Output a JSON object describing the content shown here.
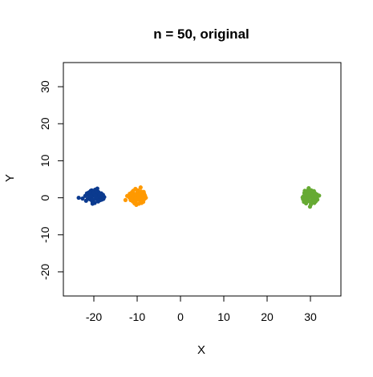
{
  "chart_data": {
    "type": "scatter",
    "title": "n = 50, original",
    "xlabel": "X",
    "ylabel": "Y",
    "xlim": [
      -25,
      35
    ],
    "ylim": [
      -25,
      35
    ],
    "xticks": [
      -20,
      -10,
      0,
      10,
      20,
      30
    ],
    "yticks": [
      -20,
      -10,
      0,
      10,
      20,
      30
    ],
    "grid": false,
    "legend": "none",
    "series": [
      {
        "color": "#0b3a8f",
        "points": [
          [
            -19.5,
            0.2
          ],
          [
            -20.3,
            1.1
          ],
          [
            -18.8,
            0.5
          ],
          [
            -20.9,
            -0.4
          ],
          [
            -19.2,
            1.8
          ],
          [
            -21.5,
            0.9
          ],
          [
            -18.5,
            -0.6
          ],
          [
            -20.0,
            -1.2
          ],
          [
            -22.6,
            -0.2
          ],
          [
            -19.7,
            2.2
          ],
          [
            -17.9,
            0.8
          ],
          [
            -20.6,
            0.1
          ],
          [
            -19.0,
            -1.0
          ],
          [
            -21.2,
            1.4
          ],
          [
            -18.3,
            1.2
          ],
          [
            -20.1,
            0.6
          ],
          [
            -19.4,
            -0.3
          ],
          [
            -21.8,
            -0.8
          ],
          [
            -18.9,
            1.5
          ],
          [
            -20.4,
            -0.9
          ],
          [
            -17.6,
            0.2
          ],
          [
            -19.9,
            1.0
          ],
          [
            -21.0,
            0.0
          ],
          [
            -18.6,
            -0.2
          ],
          [
            -20.7,
            1.9
          ],
          [
            -19.3,
            0.9
          ],
          [
            -22.0,
            0.5
          ],
          [
            -18.1,
            -0.1
          ],
          [
            -20.2,
            -0.5
          ],
          [
            -19.6,
            1.6
          ],
          [
            -21.4,
            -0.3
          ],
          [
            -18.7,
            0.0
          ],
          [
            -20.8,
            0.7
          ],
          [
            -19.1,
            -0.7
          ],
          [
            -20.5,
            2.0
          ],
          [
            -18.4,
            0.4
          ],
          [
            -19.8,
            -1.4
          ],
          [
            -21.6,
            1.2
          ],
          [
            -19.0,
            0.3
          ],
          [
            -20.0,
            1.3
          ],
          [
            -18.2,
            -0.5
          ],
          [
            -21.1,
            0.4
          ],
          [
            -19.5,
            -0.1
          ],
          [
            -20.3,
            -1.6
          ],
          [
            -18.6,
            1.0
          ],
          [
            -23.5,
            0.0
          ],
          [
            -19.2,
            2.5
          ],
          [
            -20.9,
            1.6
          ],
          [
            -17.8,
            -0.3
          ],
          [
            -19.7,
            0.5
          ]
        ]
      },
      {
        "color": "#ff9900",
        "points": [
          [
            -10.1,
            0.3
          ],
          [
            -9.5,
            1.2
          ],
          [
            -10.8,
            -0.5
          ],
          [
            -9.0,
            0.8
          ],
          [
            -11.2,
            1.5
          ],
          [
            -8.7,
            -0.2
          ],
          [
            -10.4,
            -1.3
          ],
          [
            -9.8,
            2.0
          ],
          [
            -11.8,
            0.1
          ],
          [
            -8.4,
            1.1
          ],
          [
            -10.6,
            0.7
          ],
          [
            -9.3,
            -0.8
          ],
          [
            -11.5,
            -0.6
          ],
          [
            -9.9,
            1.6
          ],
          [
            -8.9,
            0.4
          ],
          [
            -10.3,
            -0.1
          ],
          [
            -9.6,
            -1.6
          ],
          [
            -12.3,
            0.5
          ],
          [
            -8.2,
            0.6
          ],
          [
            -10.9,
            1.9
          ],
          [
            -9.1,
            -0.4
          ],
          [
            -10.0,
            0.9
          ],
          [
            -11.0,
            -1.0
          ],
          [
            -9.4,
            0.1
          ],
          [
            -8.6,
            -1.1
          ],
          [
            -10.7,
            0.2
          ],
          [
            -9.7,
            1.4
          ],
          [
            -11.4,
            0.8
          ],
          [
            -8.8,
            -0.7
          ],
          [
            -10.2,
            -1.9
          ],
          [
            -9.2,
            2.8
          ],
          [
            -12.7,
            -0.6
          ],
          [
            -8.0,
            0.0
          ],
          [
            -10.5,
            1.0
          ],
          [
            -9.6,
            -0.3
          ],
          [
            -11.1,
            0.0
          ],
          [
            -9.0,
            -1.4
          ],
          [
            -10.8,
            -0.9
          ],
          [
            -9.9,
            0.5
          ],
          [
            -8.5,
            1.6
          ],
          [
            -10.1,
            -0.6
          ],
          [
            -11.7,
            1.1
          ],
          [
            -9.4,
            0.9
          ],
          [
            -10.6,
            -1.5
          ],
          [
            -8.3,
            -0.3
          ],
          [
            -9.8,
            0.0
          ],
          [
            -11.3,
            -0.1
          ],
          [
            -9.1,
            1.7
          ],
          [
            -10.4,
            2.4
          ],
          [
            -8.9,
            -0.9
          ]
        ]
      },
      {
        "color": "#66aa33",
        "points": [
          [
            29.8,
            0.2
          ],
          [
            30.5,
            1.1
          ],
          [
            29.2,
            -0.6
          ],
          [
            31.0,
            0.7
          ],
          [
            28.6,
            1.3
          ],
          [
            30.2,
            -1.2
          ],
          [
            29.5,
            2.1
          ],
          [
            31.4,
            -0.3
          ],
          [
            28.9,
            0.0
          ],
          [
            30.8,
            1.8
          ],
          [
            29.0,
            -1.5
          ],
          [
            30.0,
            0.9
          ],
          [
            31.8,
            0.5
          ],
          [
            28.3,
            -0.4
          ],
          [
            29.7,
            -0.9
          ],
          [
            30.4,
            0.3
          ],
          [
            29.3,
            1.6
          ],
          [
            31.2,
            -1.0
          ],
          [
            28.8,
            0.8
          ],
          [
            30.6,
            -0.2
          ],
          [
            29.6,
            2.6
          ],
          [
            30.9,
            1.4
          ],
          [
            28.5,
            -1.1
          ],
          [
            29.9,
            -2.4
          ],
          [
            31.5,
            0.9
          ],
          [
            29.1,
            0.5
          ],
          [
            30.3,
            -0.7
          ],
          [
            28.7,
            1.9
          ],
          [
            30.7,
            0.0
          ],
          [
            29.4,
            -0.3
          ],
          [
            31.1,
            1.2
          ],
          [
            28.4,
            0.4
          ],
          [
            30.1,
            -1.8
          ],
          [
            29.8,
            1.0
          ],
          [
            32.0,
            0.6
          ],
          [
            29.0,
            0.9
          ],
          [
            30.5,
            -0.5
          ],
          [
            28.9,
            -0.8
          ],
          [
            31.3,
            0.2
          ],
          [
            29.5,
            0.6
          ],
          [
            30.2,
            2.0
          ],
          [
            28.2,
            0.1
          ],
          [
            30.9,
            -1.4
          ],
          [
            29.3,
            -0.1
          ],
          [
            31.6,
            -0.5
          ],
          [
            29.7,
            1.4
          ],
          [
            30.0,
            -1.0
          ],
          [
            28.7,
            -0.2
          ],
          [
            30.6,
            0.8
          ],
          [
            29.2,
            1.0
          ]
        ]
      }
    ]
  }
}
